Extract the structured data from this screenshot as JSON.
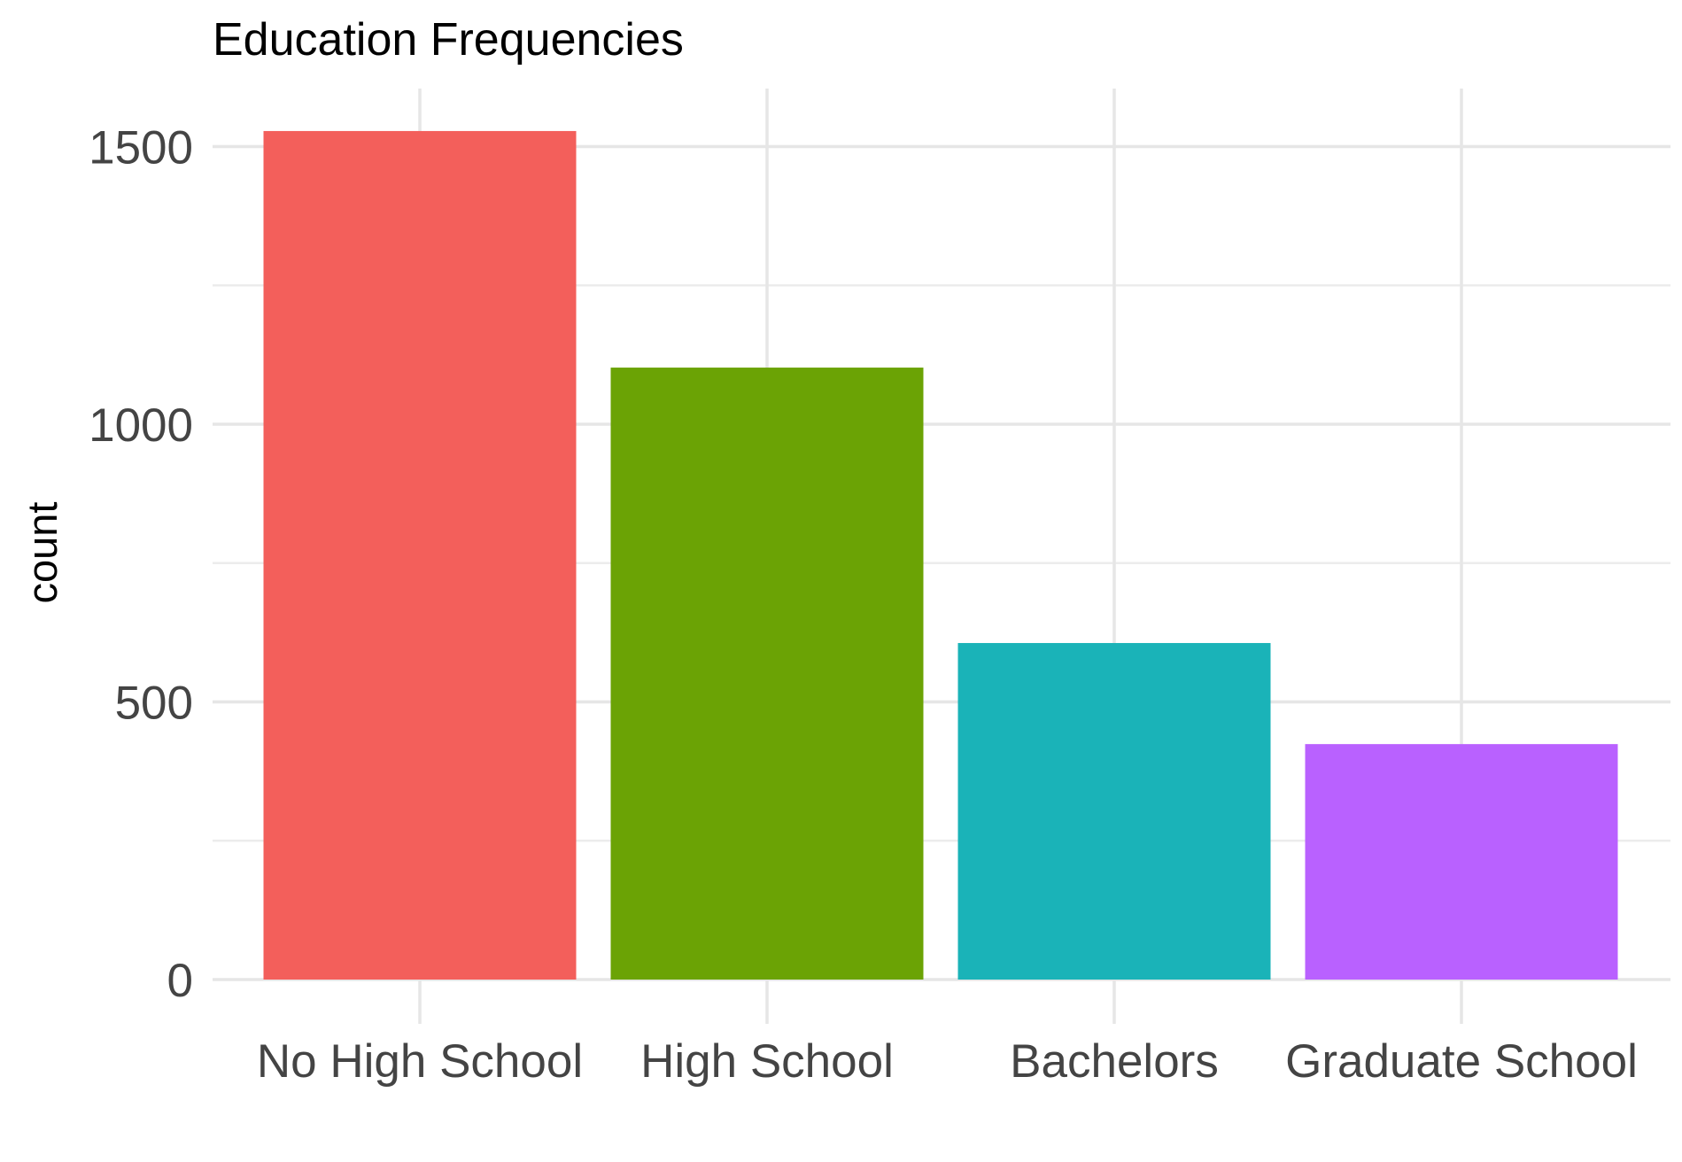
{
  "chart_data": {
    "type": "bar",
    "title": "Education Frequencies",
    "xlabel": "",
    "ylabel": "count",
    "categories": [
      "No High School",
      "High School",
      "Bachelors",
      "Graduate School"
    ],
    "values": [
      1528,
      1102,
      606,
      424
    ],
    "colors": [
      "#F35F5B",
      "#6BA305",
      "#1AB3B8",
      "#B961FF"
    ],
    "ylim": [
      0,
      1600
    ],
    "yticks": [
      0,
      500,
      1000,
      1500
    ],
    "yticklabels": [
      "0",
      "500",
      "1000",
      "1500"
    ],
    "grid": true,
    "legend": "none"
  }
}
